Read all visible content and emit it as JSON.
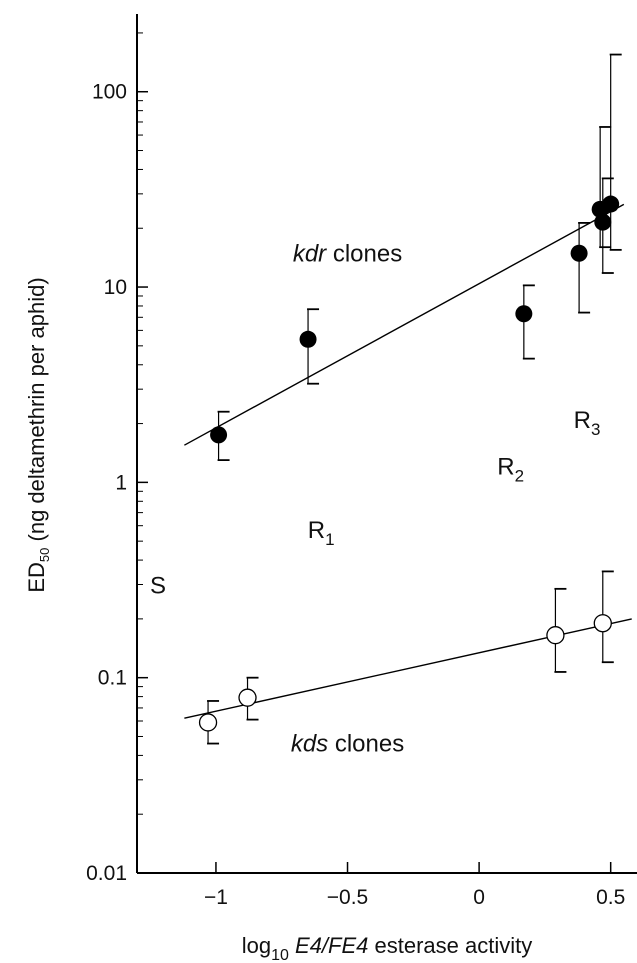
{
  "chart_data": {
    "type": "scatter",
    "xlabel": {
      "prefix": "log",
      "prefix_sub": "10",
      "italic": "E4/FE4",
      "suffix": " esterase activity"
    },
    "ylabel": {
      "prefix": "ED",
      "prefix_sub": "50",
      "rest": "(ng deltamethrin per aphid)"
    },
    "x_scale": "linear",
    "y_scale": "log",
    "xlim": [
      -1.3,
      0.6
    ],
    "ylim": [
      0.01,
      250
    ],
    "x_ticks": [
      {
        "value": -1,
        "label": "−1"
      },
      {
        "value": -0.5,
        "label": "−0.5"
      },
      {
        "value": 0,
        "label": "0"
      },
      {
        "value": 0.5,
        "label": "0.5"
      }
    ],
    "y_ticks": [
      {
        "value": 100,
        "label": "100"
      },
      {
        "value": 10,
        "label": "10"
      },
      {
        "value": 1,
        "label": "1"
      },
      {
        "value": 0.1,
        "label": "0.1"
      },
      {
        "value": 0.01,
        "label": "0.01"
      }
    ],
    "series": [
      {
        "marker": "filled-circle",
        "color": "#000000",
        "points": [
          {
            "x": -0.99,
            "y": 1.75,
            "err_low": 1.3,
            "err_high": 2.3
          },
          {
            "x": -0.65,
            "y": 5.4,
            "err_low": 3.2,
            "err_high": 7.7
          },
          {
            "x": 0.17,
            "y": 7.3,
            "err_low": 4.3,
            "err_high": 10.2
          },
          {
            "x": 0.38,
            "y": 14.9,
            "err_low": 7.4,
            "err_high": 21.3
          },
          {
            "x": 0.46,
            "y": 25.0,
            "err_low": 16.0,
            "err_high": 66.0
          },
          {
            "x": 0.47,
            "y": 21.5,
            "err_low": 11.8,
            "err_high": 36.0
          },
          {
            "x": 0.5,
            "y": 26.6,
            "err_low": 15.5,
            "err_high": 155.0
          }
        ],
        "fit_line": {
          "x": [
            -1.12,
            0.55
          ],
          "y": [
            1.55,
            26.5
          ]
        }
      },
      {
        "marker": "open-circle",
        "color": "#000000",
        "points": [
          {
            "x": -1.03,
            "y": 0.059,
            "err_low": 0.046,
            "err_high": 0.076
          },
          {
            "x": -0.88,
            "y": 0.079,
            "err_low": 0.061,
            "err_high": 0.1
          },
          {
            "x": 0.29,
            "y": 0.165,
            "err_low": 0.107,
            "err_high": 0.285
          },
          {
            "x": 0.47,
            "y": 0.19,
            "err_low": 0.12,
            "err_high": 0.35
          }
        ],
        "fit_line": {
          "x": [
            -1.12,
            0.58
          ],
          "y": [
            0.062,
            0.2
          ]
        }
      }
    ],
    "annotations": [
      {
        "text": "kdr",
        "italic": true,
        "rest": " clones",
        "x": -0.5,
        "y": 13.5,
        "cls": "annot"
      },
      {
        "text": "kds",
        "italic": true,
        "rest": " clones",
        "x": -0.5,
        "y": 0.042,
        "cls": "annot"
      },
      {
        "text": "S",
        "italic": false,
        "rest": "",
        "sub": "",
        "x": -1.22,
        "y": 0.27,
        "cls": "region"
      },
      {
        "text": "R",
        "italic": false,
        "rest": "",
        "sub": "1",
        "x": -0.6,
        "y": 0.52,
        "cls": "region"
      },
      {
        "text": "R",
        "italic": false,
        "rest": "",
        "sub": "2",
        "x": 0.12,
        "y": 1.1,
        "cls": "region"
      },
      {
        "text": "R",
        "italic": false,
        "rest": "",
        "sub": "3",
        "x": 0.41,
        "y": 1.9,
        "cls": "region"
      }
    ],
    "grid": false
  }
}
